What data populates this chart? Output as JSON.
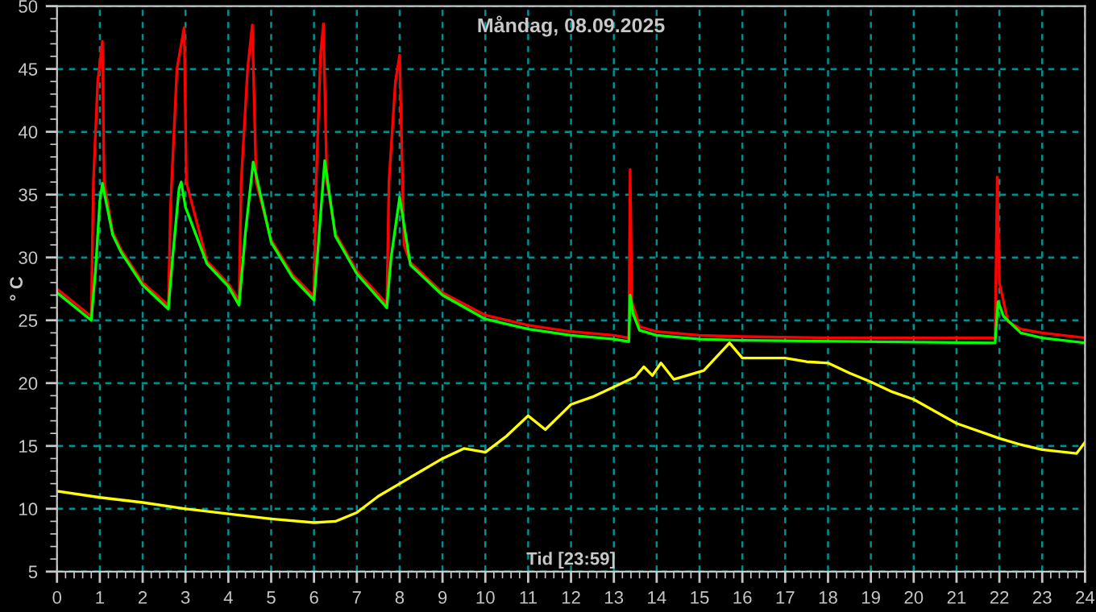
{
  "chart_data": {
    "type": "line",
    "title": "Måndag, 08.09.2025",
    "xlabel": "Tid [23:59]",
    "ylabel": "° C",
    "xlim": [
      0,
      24
    ],
    "xticks": [
      0,
      1,
      2,
      3,
      4,
      5,
      6,
      7,
      8,
      9,
      10,
      11,
      12,
      13,
      14,
      15,
      16,
      17,
      18,
      19,
      20,
      21,
      22,
      23,
      24
    ],
    "ylim": [
      5,
      50
    ],
    "yticks": [
      5,
      10,
      15,
      20,
      25,
      30,
      35,
      40,
      45,
      50
    ],
    "grid": true,
    "marker": "none",
    "line_style": "solid",
    "series": [
      {
        "color": "#ff0000",
        "x": [
          0,
          0.8,
          0.85,
          0.95,
          1.06,
          1.1,
          1.3,
          1.5,
          2.0,
          2.6,
          2.65,
          2.8,
          2.97,
          3.02,
          3.5,
          4.0,
          4.25,
          4.3,
          4.45,
          4.56,
          4.65,
          5.0,
          5.5,
          6.0,
          6.05,
          6.15,
          6.22,
          6.3,
          6.5,
          7.0,
          7.7,
          7.75,
          7.9,
          8.0,
          8.1,
          8.25,
          9,
          10,
          11,
          12,
          13,
          13.35,
          13.38,
          13.42,
          13.6,
          14,
          15,
          16,
          18,
          21.9,
          21.95,
          22.0,
          22.2,
          22.5,
          23,
          24
        ],
        "values": [
          27.5,
          25.3,
          36,
          44,
          47.2,
          36,
          32.0,
          30.6,
          28.0,
          26.2,
          34,
          45,
          48.3,
          36,
          29.7,
          27.9,
          26.6,
          36,
          45,
          48.5,
          36,
          31.4,
          28.6,
          26.9,
          36,
          46,
          48.6,
          36,
          31.9,
          28.9,
          26.3,
          36,
          44,
          46.1,
          31,
          29.6,
          27.2,
          25.4,
          24.6,
          24.1,
          23.8,
          23.6,
          37,
          26.5,
          24.5,
          24.1,
          23.8,
          23.7,
          23.6,
          23.6,
          36.4,
          28,
          24.9,
          24.3,
          24.0,
          23.6
        ]
      },
      {
        "color": "#00ff00",
        "x": [
          0,
          0.8,
          0.9,
          1.0,
          1.06,
          1.3,
          1.5,
          2.0,
          2.6,
          2.7,
          2.85,
          2.9,
          3.0,
          3.5,
          4.0,
          4.25,
          4.4,
          4.58,
          5.0,
          5.5,
          6.0,
          6.1,
          6.25,
          6.5,
          7.0,
          7.7,
          7.8,
          8.0,
          8.25,
          9,
          10,
          11,
          12,
          13,
          13.35,
          13.38,
          13.45,
          13.6,
          14,
          15,
          16,
          21.9,
          21.97,
          22.1,
          22.5,
          23,
          24
        ],
        "values": [
          27.2,
          25.0,
          29,
          34.5,
          35.9,
          31.8,
          30.4,
          27.8,
          25.9,
          30,
          35.5,
          36,
          34,
          29.5,
          27.7,
          26.2,
          32,
          37.6,
          31.2,
          28.4,
          26.6,
          31,
          37.7,
          31.7,
          28.7,
          26.0,
          30,
          34.8,
          29.4,
          27.0,
          25.1,
          24.3,
          23.8,
          23.5,
          23.3,
          27,
          25.5,
          24.2,
          23.8,
          23.5,
          23.4,
          23.2,
          26.5,
          25.3,
          24.0,
          23.6,
          23.2
        ]
      },
      {
        "color": "#ffff00",
        "x": [
          0,
          1,
          2,
          3,
          4,
          5,
          6,
          6.5,
          7,
          7.5,
          8,
          8.5,
          9,
          9.5,
          10,
          10.5,
          11,
          11.4,
          12,
          12.5,
          13,
          13.5,
          13.7,
          13.9,
          14.1,
          14.4,
          15.1,
          15.7,
          16,
          17,
          17.5,
          18,
          18.5,
          19,
          19.5,
          20,
          21,
          22,
          22.5,
          23,
          23.8,
          24
        ],
        "values": [
          11.4,
          10.9,
          10.5,
          10.0,
          9.6,
          9.2,
          8.9,
          9.0,
          9.7,
          11.0,
          12.0,
          13.0,
          14.0,
          14.8,
          14.5,
          15.8,
          17.4,
          16.3,
          18.3,
          18.9,
          19.7,
          20.5,
          21.3,
          20.6,
          21.6,
          20.3,
          21.0,
          23.2,
          22.0,
          22.0,
          21.7,
          21.6,
          20.8,
          20.1,
          19.3,
          18.7,
          16.8,
          15.6,
          15.1,
          14.7,
          14.4,
          15.3
        ]
      }
    ]
  }
}
